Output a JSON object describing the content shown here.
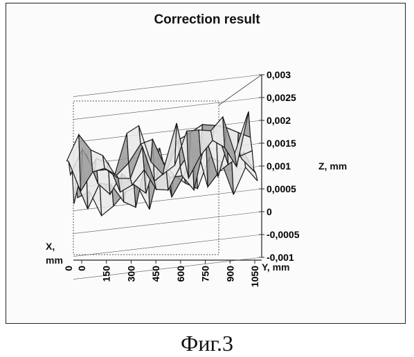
{
  "chart_data": {
    "type": "surface",
    "title": "Correction result",
    "zlabel": "Z, mm",
    "ylabel": "Y, mm",
    "xlabel_line1": "X,",
    "xlabel_line2": "mm",
    "zlim": [
      -0.001,
      0.003
    ],
    "z_ticks": [
      "0,003",
      "0,0025",
      "0,002",
      "0,0015",
      "0,001",
      "0,0005",
      "0",
      "-0,0005",
      "-0,001"
    ],
    "z_tick_values": [
      0.003,
      0.0025,
      0.002,
      0.0015,
      0.001,
      0.0005,
      0,
      -0.0005,
      -0.001
    ],
    "x_ticks": [
      "0"
    ],
    "y_ticks": [
      "0",
      "150",
      "300",
      "450",
      "600",
      "750",
      "900",
      "1050"
    ],
    "y_tick_values": [
      0,
      150,
      300,
      450,
      600,
      750,
      900,
      1050
    ],
    "grid": true
  },
  "caption": "Фиг.3",
  "colors": {
    "mesh": "#1a1a1a",
    "face_light": "#e8e8e8",
    "face_dark": "#9a9a9a",
    "grid": "#555555"
  }
}
